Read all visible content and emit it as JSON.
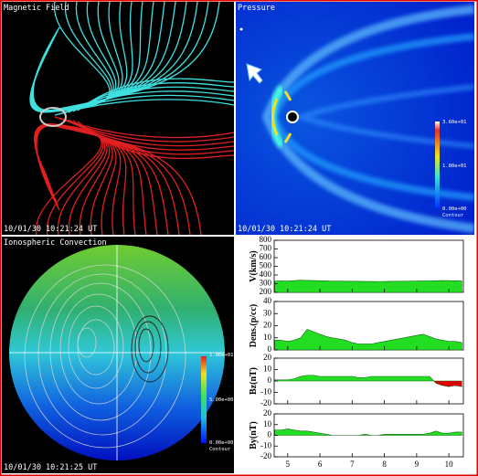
{
  "panels": [
    {
      "title": "Magnetic Field",
      "timestamp": "10/01/30 10:21:24 UT"
    },
    {
      "title": "Pressure",
      "timestamp": "10/01/30 10:21:24 UT",
      "colorbar": {
        "labels": [
          "3.60e+01",
          "1.80e+01",
          "0.00e+00"
        ],
        "caption": "Contour"
      }
    },
    {
      "title": "Ionospheric Convection",
      "timestamp": "10/01/30 10:21:25 UT",
      "colorbar": {
        "labels": [
          "1.00e+01",
          "5.00e+00",
          "0.00e+00"
        ],
        "caption": "Contour"
      }
    }
  ],
  "chart_data": [
    {
      "type": "area",
      "ylabel": "V(km/s)",
      "x": [
        4.6,
        4.8,
        5.0,
        5.2,
        5.4,
        5.6,
        5.8,
        6.0,
        6.2,
        6.4,
        6.6,
        6.8,
        7.0,
        7.2,
        7.4,
        7.6,
        7.8,
        8.0,
        8.2,
        8.4,
        8.6,
        8.8,
        9.0,
        9.2,
        9.4,
        9.6,
        9.8,
        10.0,
        10.2,
        10.4
      ],
      "series": [
        {
          "color": "#22dd22",
          "negative_color": "#dd0000",
          "values": [
            330,
            332,
            330,
            335,
            340,
            338,
            336,
            334,
            332,
            330,
            330,
            328,
            328,
            327,
            326,
            326,
            325,
            326,
            327,
            328,
            328,
            330,
            331,
            332,
            333,
            334,
            336,
            335,
            334,
            333
          ]
        }
      ],
      "ylim": [
        200,
        800
      ],
      "yticks": [
        200,
        300,
        400,
        500,
        600,
        700,
        800
      ],
      "xlim": [
        4.58,
        10.45
      ],
      "xticks": [
        5,
        6,
        7,
        8,
        9,
        10
      ],
      "show_xtick_labels": false
    },
    {
      "type": "area",
      "ylabel": "Dens.(p/cc)",
      "x": [
        4.6,
        4.8,
        5.0,
        5.2,
        5.4,
        5.6,
        5.8,
        6.0,
        6.2,
        6.4,
        6.6,
        6.8,
        7.0,
        7.2,
        7.4,
        7.6,
        7.8,
        8.0,
        8.2,
        8.4,
        8.6,
        8.8,
        9.0,
        9.2,
        9.4,
        9.6,
        9.8,
        10.0,
        10.2,
        10.4
      ],
      "series": [
        {
          "color": "#22dd22",
          "negative_color": "#dd0000",
          "values": [
            8,
            8,
            7,
            8,
            10,
            17,
            15,
            13,
            11,
            10,
            9,
            8,
            6,
            5,
            5,
            5,
            6,
            7,
            8,
            9,
            10,
            11,
            12,
            13,
            11,
            9,
            8,
            7,
            7,
            6
          ]
        }
      ],
      "ylim": [
        0,
        40
      ],
      "yticks": [
        0,
        10,
        20,
        30,
        40
      ],
      "xlim": [
        4.58,
        10.45
      ],
      "xticks": [
        5,
        6,
        7,
        8,
        9,
        10
      ],
      "show_xtick_labels": false
    },
    {
      "type": "area",
      "ylabel": "Bz(nT)",
      "x": [
        4.6,
        4.8,
        5.0,
        5.2,
        5.4,
        5.6,
        5.8,
        6.0,
        6.2,
        6.4,
        6.6,
        6.8,
        7.0,
        7.2,
        7.4,
        7.6,
        7.8,
        8.0,
        8.2,
        8.4,
        8.6,
        8.8,
        9.0,
        9.2,
        9.4,
        9.6,
        9.8,
        10.0,
        10.2,
        10.4
      ],
      "series": [
        {
          "color": "#22dd22",
          "negative_color": "#dd0000",
          "values": [
            1,
            1,
            1,
            2,
            4,
            5,
            5,
            4,
            4,
            4,
            4,
            4,
            4,
            3,
            3,
            4,
            4,
            4,
            4,
            4,
            4,
            4,
            4,
            4,
            4,
            -2,
            -4,
            -5,
            -4,
            -5
          ]
        }
      ],
      "ylim": [
        -20,
        20
      ],
      "yticks": [
        -20,
        -10,
        0,
        10,
        20
      ],
      "xlim": [
        4.58,
        10.45
      ],
      "xticks": [
        5,
        6,
        7,
        8,
        9,
        10
      ],
      "show_xtick_labels": false
    },
    {
      "type": "area",
      "ylabel": "By(nT)",
      "x": [
        4.6,
        4.8,
        5.0,
        5.2,
        5.4,
        5.6,
        5.8,
        6.0,
        6.2,
        6.4,
        6.6,
        6.8,
        7.0,
        7.2,
        7.4,
        7.6,
        7.8,
        8.0,
        8.2,
        8.4,
        8.6,
        8.8,
        9.0,
        9.2,
        9.4,
        9.6,
        9.8,
        10.0,
        10.2,
        10.4
      ],
      "series": [
        {
          "color": "#22dd22",
          "negative_color": "#dd0000",
          "values": [
            5,
            5,
            6,
            5,
            4,
            4,
            3,
            2,
            1,
            0,
            0,
            0,
            0,
            0,
            1,
            0,
            0,
            1,
            1,
            1,
            1,
            1,
            1,
            1,
            2,
            4,
            2,
            2,
            3,
            3
          ]
        }
      ],
      "ylim": [
        -20,
        20
      ],
      "yticks": [
        -20,
        -10,
        0,
        10,
        20
      ],
      "xlim": [
        4.58,
        10.45
      ],
      "xticks": [
        5,
        6,
        7,
        8,
        9,
        10
      ],
      "show_xtick_labels": true
    }
  ]
}
